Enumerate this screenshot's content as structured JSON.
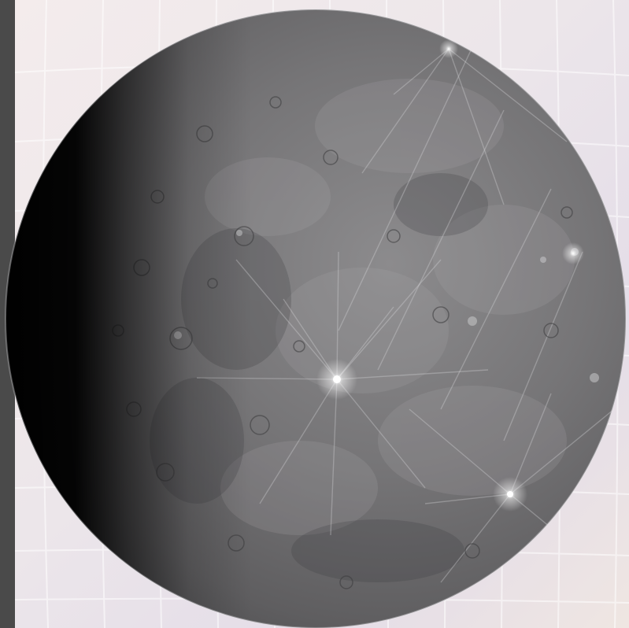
{
  "scene": {
    "subject": "planet",
    "colors": {
      "background_light": "#f2eaec",
      "background_lavender": "#e4dde8",
      "left_bar": "#4a4a4a",
      "grid_line": "#ffffff",
      "planet_shadow": "#050505",
      "planet_surface_dark": "#3e3e40",
      "planet_surface_mid": "#6e6e70",
      "planet_surface_light": "#a9a8aa",
      "bright_crater": "#ffffff"
    }
  }
}
